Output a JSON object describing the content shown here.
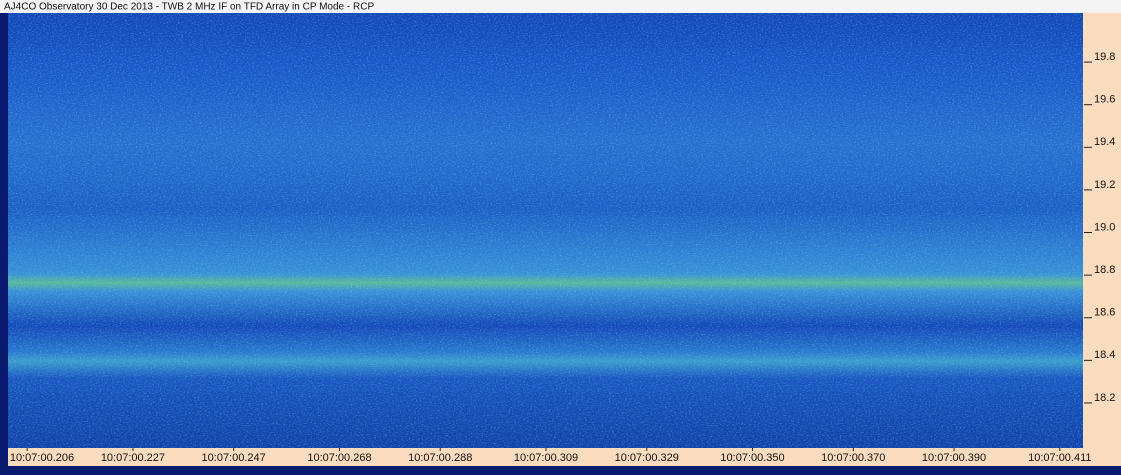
{
  "chart_data": {
    "type": "spectrogram",
    "title": "AJ4CO Observatory 30 Dec 2013 - TWB 2 MHz IF on TFD Array in CP Mode - RCP",
    "xlim": [
      0.2022,
      0.4156
    ],
    "xticks": [
      {
        "value": 0.206,
        "label": "10:07:00.206"
      },
      {
        "value": 0.227,
        "label": "10:07:00.227"
      },
      {
        "value": 0.247,
        "label": "10:07:00.247"
      },
      {
        "value": 0.268,
        "label": "10:07:00.268"
      },
      {
        "value": 0.288,
        "label": "10:07:00.288"
      },
      {
        "value": 0.309,
        "label": "10:07:00.309"
      },
      {
        "value": 0.329,
        "label": "10:07:00.329"
      },
      {
        "value": 0.35,
        "label": "10:07:00.350"
      },
      {
        "value": 0.37,
        "label": "10:07:00.370"
      },
      {
        "value": 0.39,
        "label": "10:07:00.390"
      },
      {
        "value": 0.411,
        "label": "10:07:00.411"
      }
    ],
    "ylim": [
      17.965,
      20.007
    ],
    "yticks": [
      18.2,
      18.4,
      18.6,
      18.8,
      {
        "value": 19,
        "label": "19.0"
      },
      19.2,
      19.4,
      19.6,
      19.8
    ]
  }
}
